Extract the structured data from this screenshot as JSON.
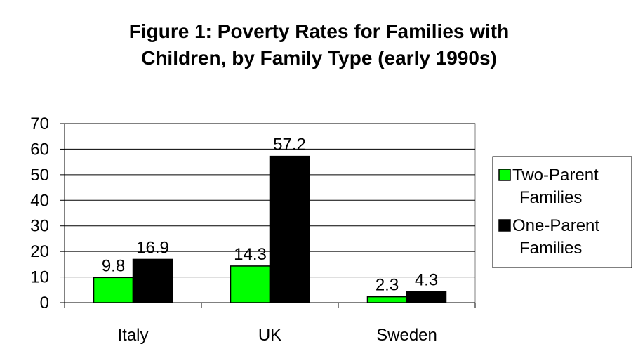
{
  "chart_data": {
    "type": "bar",
    "title": "Figure 1: Poverty Rates for Families with\nChildren, by Family Type (early 1990s)",
    "xlabel": "",
    "ylabel": "",
    "ylim": [
      0,
      70
    ],
    "yticks": [
      0,
      10,
      20,
      30,
      40,
      50,
      60,
      70
    ],
    "categories": [
      "Italy",
      "UK",
      "Sweden"
    ],
    "series": [
      {
        "name": "Two-Parent Families",
        "legend_lines": [
          "Two-Parent",
          "Families"
        ],
        "color": "#00ff00",
        "values": [
          9.8,
          14.3,
          2.3
        ],
        "labels": [
          "9.8",
          "14.3",
          "2.3"
        ]
      },
      {
        "name": "One-Parent Families",
        "legend_lines": [
          "One-Parent",
          "Families"
        ],
        "color": "#000000",
        "values": [
          16.9,
          57.2,
          4.3
        ],
        "labels": [
          "16.9",
          "57.2",
          "4.3"
        ]
      }
    ],
    "grid": true,
    "legend": "right"
  }
}
